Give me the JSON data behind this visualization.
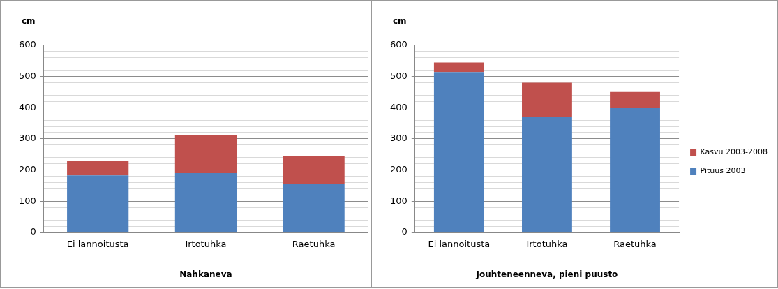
{
  "chart_data": [
    {
      "type": "bar",
      "stacked": true,
      "xlabel": "Nahkaneva",
      "ylabel": "cm",
      "categories": [
        "Ei lannoitusta",
        "Irtotuhka",
        "Raetuhka"
      ],
      "series": [
        {
          "color": "#4f81bd",
          "values": [
            183,
            190,
            156
          ]
        },
        {
          "color": "#c0504d",
          "values": [
            46,
            121,
            88
          ]
        }
      ],
      "ylim": [
        0,
        600
      ],
      "yticks": [
        0,
        {
          "value": 20,
          "label": null
        },
        {
          "value": 40,
          "label": null
        },
        {
          "value": 60,
          "label": null
        },
        {
          "value": 80,
          "label": null
        },
        100,
        {
          "value": 120,
          "label": null
        },
        {
          "value": 140,
          "label": null
        },
        {
          "value": 160,
          "label": null
        },
        {
          "value": 180,
          "label": null
        },
        200,
        {
          "value": 220,
          "label": null
        },
        {
          "value": 240,
          "label": null
        },
        {
          "value": 260,
          "label": null
        },
        {
          "value": 280,
          "label": null
        },
        300,
        {
          "value": 320,
          "label": null
        },
        {
          "value": 340,
          "label": null
        },
        {
          "value": 360,
          "label": null
        },
        {
          "value": 380,
          "label": null
        },
        400,
        {
          "value": 420,
          "label": null
        },
        {
          "value": 440,
          "label": null
        },
        {
          "value": 460,
          "label": null
        },
        {
          "value": 480,
          "label": null
        },
        500,
        {
          "value": 520,
          "label": null
        },
        {
          "value": 540,
          "label": null
        },
        {
          "value": 560,
          "label": null
        },
        {
          "value": 580,
          "label": null
        },
        600
      ],
      "grid": "y",
      "legend": false
    },
    {
      "type": "bar",
      "stacked": true,
      "xlabel": "Jouhteneenneva, pieni puusto",
      "ylabel": "cm",
      "categories": [
        "Ei lannoitusta",
        "Irtotuhka",
        "Raetuhka"
      ],
      "series": [
        {
          "name": "Pituus 2003",
          "color": "#4f81bd",
          "values": [
            514,
            370,
            399
          ]
        },
        {
          "name": "Kasvu 2003-2008",
          "color": "#c0504d",
          "values": [
            31,
            110,
            51
          ]
        }
      ],
      "ylim": [
        0,
        600
      ],
      "yticks": [
        0,
        {
          "value": 20,
          "label": null
        },
        {
          "value": 40,
          "label": null
        },
        {
          "value": 60,
          "label": null
        },
        {
          "value": 80,
          "label": null
        },
        100,
        {
          "value": 120,
          "label": null
        },
        {
          "value": 140,
          "label": null
        },
        {
          "value": 160,
          "label": null
        },
        {
          "value": 180,
          "label": null
        },
        200,
        {
          "value": 220,
          "label": null
        },
        {
          "value": 240,
          "label": null
        },
        {
          "value": 260,
          "label": null
        },
        {
          "value": 280,
          "label": null
        },
        300,
        {
          "value": 320,
          "label": null
        },
        {
          "value": 340,
          "label": null
        },
        {
          "value": 360,
          "label": null
        },
        {
          "value": 380,
          "label": null
        },
        400,
        {
          "value": 420,
          "label": null
        },
        {
          "value": 440,
          "label": null
        },
        {
          "value": 460,
          "label": null
        },
        {
          "value": 480,
          "label": null
        },
        500,
        {
          "value": 520,
          "label": null
        },
        {
          "value": 540,
          "label": null
        },
        {
          "value": 560,
          "label": null
        },
        {
          "value": 580,
          "label": null
        },
        600
      ],
      "grid": "y",
      "legend": "right"
    }
  ]
}
